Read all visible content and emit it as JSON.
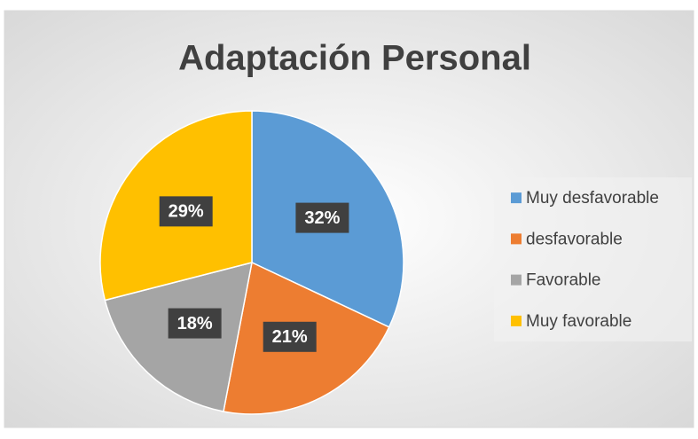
{
  "chart_data": {
    "type": "pie",
    "title": "Adaptación Personal",
    "categories": [
      "Muy desfavorable",
      "desfavorable",
      "Favorable",
      "Muy favorable"
    ],
    "values": [
      32,
      21,
      18,
      29
    ],
    "value_labels": [
      "32%",
      "21%",
      "18%",
      "29%"
    ],
    "colors": [
      "#5b9bd5",
      "#ed7d31",
      "#a5a5a5",
      "#ffc000"
    ],
    "legend": "right"
  }
}
